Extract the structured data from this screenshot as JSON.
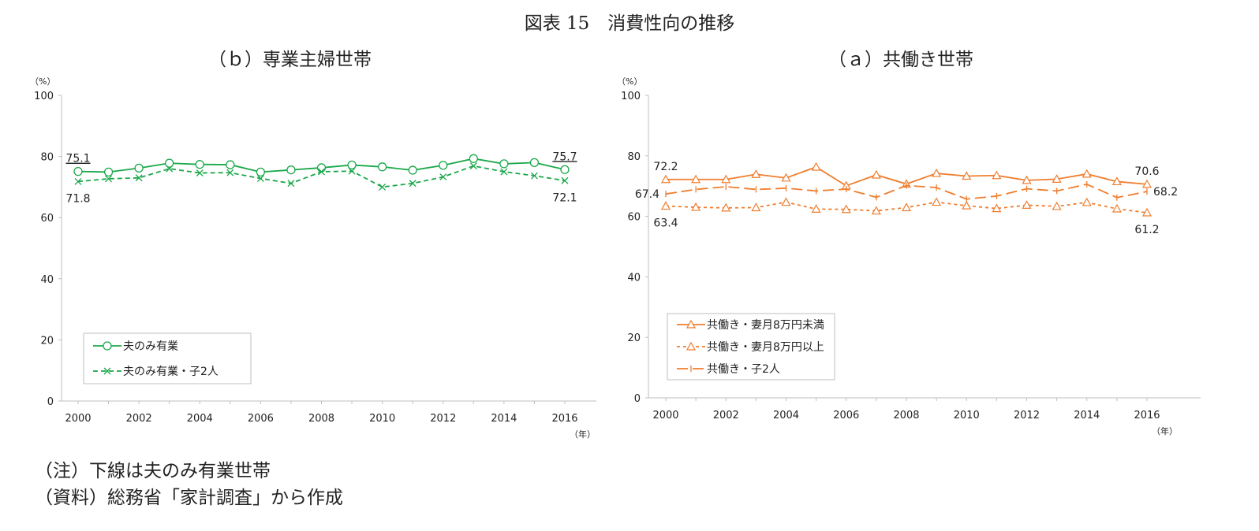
{
  "page": {
    "title": "図表 15　消費性向の推移",
    "note1": "（注）下線は夫のみ有業世帯",
    "note2": "（資料）総務省「家計調査」から作成"
  },
  "chart_data": [
    {
      "id": "b",
      "type": "line",
      "title": "（ｂ）専業主婦世帯",
      "ylabel": "（%）",
      "xlabel": "（年）",
      "ylim": [
        0,
        100
      ],
      "yticks": [
        0,
        20,
        40,
        60,
        80,
        100
      ],
      "x": [
        2000,
        2001,
        2002,
        2003,
        2004,
        2005,
        2006,
        2007,
        2008,
        2009,
        2010,
        2011,
        2012,
        2013,
        2014,
        2015,
        2016
      ],
      "xticks": [
        2000,
        2002,
        2004,
        2006,
        2008,
        2010,
        2012,
        2014,
        2016
      ],
      "legend_position": "bottom-left",
      "series": [
        {
          "name": "夫のみ有業",
          "color": "#1aa84a",
          "dash": "",
          "marker": "circle",
          "values": [
            75.1,
            74.9,
            76.2,
            77.8,
            77.4,
            77.3,
            74.9,
            75.6,
            76.3,
            77.2,
            76.6,
            75.5,
            77.1,
            79.3,
            77.6,
            78.0,
            75.7
          ]
        },
        {
          "name": "夫のみ有業・子2人",
          "color": "#1aa84a",
          "dash": "6,4",
          "marker": "x",
          "values": [
            71.8,
            72.7,
            73.0,
            76.0,
            74.6,
            74.7,
            72.8,
            71.2,
            75.0,
            75.2,
            70.0,
            71.2,
            73.3,
            76.9,
            75.0,
            73.7,
            72.1
          ]
        }
      ],
      "annotations": [
        {
          "text": "75.1",
          "x": 2000,
          "y": 75.1,
          "pos": "above",
          "underline": true
        },
        {
          "text": "71.8",
          "x": 2000,
          "y": 71.8,
          "pos": "below",
          "underline": false
        },
        {
          "text": "75.7",
          "x": 2016,
          "y": 75.7,
          "pos": "above",
          "underline": true
        },
        {
          "text": "72.1",
          "x": 2016,
          "y": 72.1,
          "pos": "below",
          "underline": false
        }
      ]
    },
    {
      "id": "a",
      "type": "line",
      "title": "（ａ）共働き世帯",
      "ylabel": "（%）",
      "xlabel": "（年）",
      "ylim": [
        0,
        100
      ],
      "yticks": [
        0,
        20,
        40,
        60,
        80,
        100
      ],
      "x": [
        2000,
        2001,
        2002,
        2003,
        2004,
        2005,
        2006,
        2007,
        2008,
        2009,
        2010,
        2011,
        2012,
        2013,
        2014,
        2015,
        2016
      ],
      "xticks": [
        2000,
        2002,
        2004,
        2006,
        2008,
        2010,
        2012,
        2014,
        2016
      ],
      "legend_position": "bottom-left",
      "series": [
        {
          "name": "共働き・妻月8万円未満",
          "color": "#f07d2e",
          "dash": "",
          "marker": "triangle",
          "values": [
            72.2,
            72.2,
            72.2,
            73.9,
            72.7,
            76.3,
            70.1,
            73.7,
            70.7,
            74.2,
            73.3,
            73.5,
            71.9,
            72.3,
            74.0,
            71.5,
            70.6
          ]
        },
        {
          "name": "共働き・妻月8万円以上",
          "color": "#f07d2e",
          "dash": "4,4",
          "marker": "triangle",
          "values": [
            63.4,
            63.0,
            62.8,
            62.9,
            64.7,
            62.4,
            62.3,
            61.8,
            62.9,
            64.7,
            63.5,
            62.6,
            63.7,
            63.3,
            64.6,
            62.5,
            61.2
          ]
        },
        {
          "name": "共働き・子2人",
          "color": "#f07d2e",
          "dash": "14,6",
          "marker": "plus",
          "values": [
            67.4,
            68.9,
            69.8,
            68.9,
            69.3,
            68.4,
            69.0,
            66.3,
            70.2,
            69.5,
            65.7,
            66.7,
            69.1,
            68.4,
            70.6,
            66.2,
            68.2
          ]
        }
      ],
      "annotations": [
        {
          "text": "72.2",
          "x": 2000,
          "y": 72.2,
          "pos": "above",
          "underline": false
        },
        {
          "text": "67.4",
          "x": 2000,
          "y": 67.4,
          "pos": "left",
          "underline": false
        },
        {
          "text": "63.4",
          "x": 2000,
          "y": 63.4,
          "pos": "below",
          "underline": false
        },
        {
          "text": "70.6",
          "x": 2016,
          "y": 70.6,
          "pos": "above",
          "underline": false
        },
        {
          "text": "68.2",
          "x": 2016,
          "y": 68.2,
          "pos": "right",
          "underline": false
        },
        {
          "text": "61.2",
          "x": 2016,
          "y": 61.2,
          "pos": "below",
          "underline": false
        }
      ]
    }
  ]
}
